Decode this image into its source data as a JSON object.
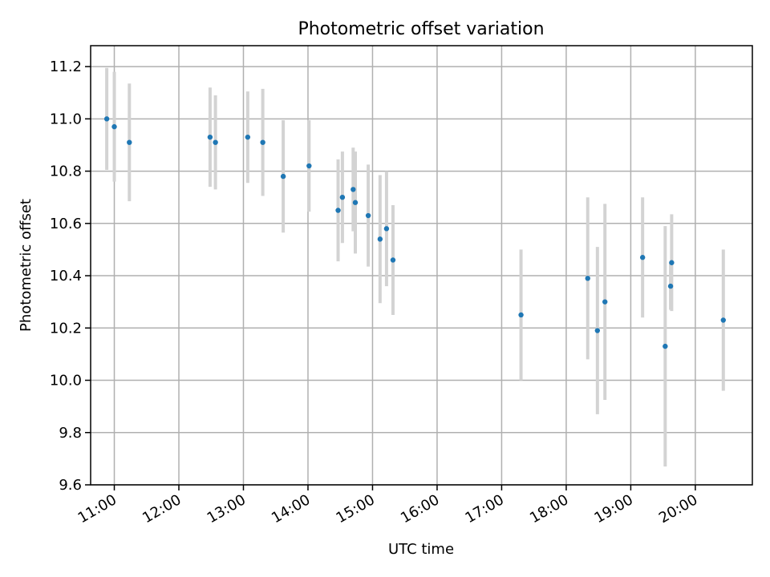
{
  "chart_data": {
    "type": "scatter",
    "title": "Photometric offset variation",
    "xlabel": "UTC time",
    "ylabel": "Photometric offset",
    "x_unit": "hours (UTC)",
    "xlim": [
      "10:38",
      "20:53"
    ],
    "ylim": [
      9.6,
      11.28
    ],
    "xticks": [
      "11:00",
      "12:00",
      "13:00",
      "14:00",
      "15:00",
      "16:00",
      "17:00",
      "18:00",
      "19:00",
      "20:00"
    ],
    "yticks": [
      9.6,
      9.8,
      10.0,
      10.2,
      10.4,
      10.6,
      10.8,
      11.0,
      11.2
    ],
    "grid": true,
    "colors": {
      "marker": "#1f77b4",
      "errorbar": "#d3d3d3"
    },
    "points": [
      {
        "time": "10:53",
        "y": 11.0,
        "err": 0.195
      },
      {
        "time": "11:00",
        "y": 10.97,
        "err": 0.21
      },
      {
        "time": "11:14",
        "y": 10.91,
        "err": 0.225
      },
      {
        "time": "12:29",
        "y": 10.93,
        "err": 0.19
      },
      {
        "time": "12:34",
        "y": 10.91,
        "err": 0.18
      },
      {
        "time": "13:04",
        "y": 10.93,
        "err": 0.175
      },
      {
        "time": "13:18",
        "y": 10.91,
        "err": 0.205
      },
      {
        "time": "13:37",
        "y": 10.78,
        "err": 0.215
      },
      {
        "time": "14:01",
        "y": 10.82,
        "err": 0.175
      },
      {
        "time": "14:28",
        "y": 10.65,
        "err": 0.195
      },
      {
        "time": "14:32",
        "y": 10.7,
        "err": 0.175
      },
      {
        "time": "14:42",
        "y": 10.73,
        "err": 0.16
      },
      {
        "time": "14:44",
        "y": 10.68,
        "err": 0.195
      },
      {
        "time": "14:56",
        "y": 10.63,
        "err": 0.195
      },
      {
        "time": "15:07",
        "y": 10.54,
        "err": 0.245
      },
      {
        "time": "15:13",
        "y": 10.58,
        "err": 0.22
      },
      {
        "time": "15:19",
        "y": 10.46,
        "err": 0.21
      },
      {
        "time": "17:18",
        "y": 10.25,
        "err": 0.25
      },
      {
        "time": "18:20",
        "y": 10.39,
        "err": 0.31
      },
      {
        "time": "18:29",
        "y": 10.19,
        "err": 0.32
      },
      {
        "time": "18:36",
        "y": 10.3,
        "err": 0.375
      },
      {
        "time": "19:11",
        "y": 10.47,
        "err": 0.23
      },
      {
        "time": "19:32",
        "y": 10.13,
        "err": 0.46
      },
      {
        "time": "19:37",
        "y": 10.36,
        "err": 0.09
      },
      {
        "time": "19:38",
        "y": 10.45,
        "err": 0.185
      },
      {
        "time": "20:26",
        "y": 10.23,
        "err": 0.27
      }
    ]
  }
}
